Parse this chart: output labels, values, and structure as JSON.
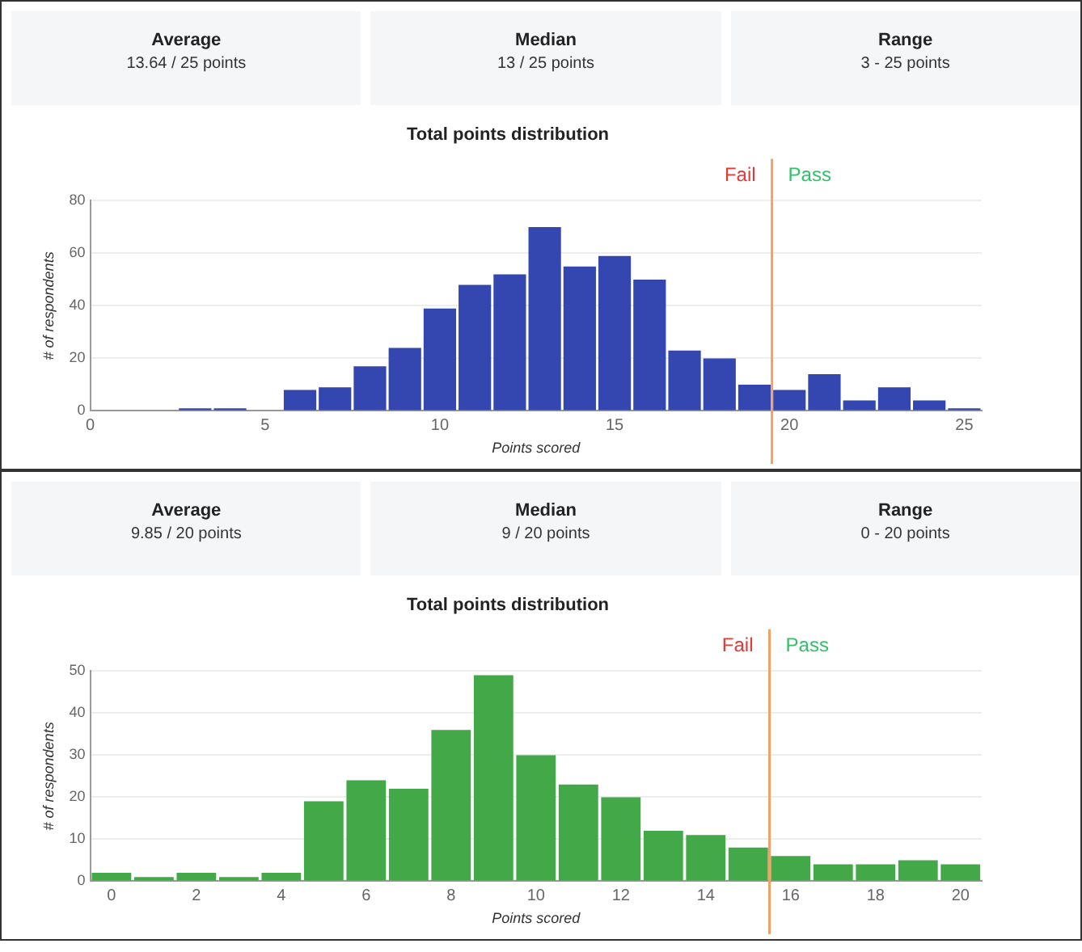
{
  "chart_data": [
    {
      "type": "other",
      "annotations": [
        "Average",
        "13.64 / 25 points",
        "Median",
        "13 / 25 points",
        "Range",
        "3 - 25 points"
      ]
    },
    {
      "type": "histogram",
      "title": "Total points distribution",
      "xlabel": "Points scored",
      "ylabel": "# of respondents",
      "color": "#3446b0",
      "bins": [
        0.5,
        1.5,
        2.5,
        3.5,
        4.5,
        5.5,
        6.5,
        7.5,
        8.5,
        9.5,
        10.5,
        11.5,
        12.5,
        13.5,
        14.5,
        15.5,
        16.5,
        17.5,
        18.5,
        19.5,
        20.5,
        21.5,
        22.5,
        23.5,
        24.5,
        25.5
      ],
      "values": [
        0,
        0,
        1,
        1,
        0,
        8,
        9,
        17,
        24,
        39,
        48,
        52,
        70,
        55,
        59,
        50,
        23,
        20,
        10,
        8,
        14,
        4,
        9,
        4,
        1
      ],
      "xlim": [
        0,
        25.5
      ],
      "xticks": [
        0,
        5,
        10,
        15,
        20,
        25
      ],
      "ylim": [
        0,
        80
      ],
      "yticks": [
        0,
        20,
        40,
        60,
        80
      ],
      "grid": "y",
      "legend": false,
      "ref_lines": [
        {
          "axis": "x",
          "value": 19.5,
          "color": "#f0a068"
        }
      ],
      "annotations": [
        "Fail",
        "Pass"
      ]
    },
    {
      "type": "other",
      "annotations": [
        "Average",
        "9.85 / 20 points",
        "Median",
        "9 / 20 points",
        "Range",
        "0 - 20 points"
      ]
    },
    {
      "type": "histogram",
      "title": "Total points distribution",
      "xlabel": "Points scored",
      "ylabel": "# of respondents",
      "color": "#43a847",
      "bins": [
        -0.5,
        0.5,
        1.5,
        2.5,
        3.5,
        4.5,
        5.5,
        6.5,
        7.5,
        8.5,
        9.5,
        10.5,
        11.5,
        12.5,
        13.5,
        14.5,
        15.5,
        16.5,
        17.5,
        18.5,
        19.5,
        20.5
      ],
      "values": [
        2,
        1,
        2,
        1,
        2,
        19,
        24,
        22,
        36,
        49,
        30,
        23,
        20,
        12,
        11,
        8,
        6,
        4,
        4,
        5,
        4
      ],
      "xlim": [
        -0.5,
        20.5
      ],
      "xticks": [
        0,
        2,
        4,
        6,
        8,
        10,
        12,
        14,
        16,
        18,
        20
      ],
      "ylim": [
        0,
        50
      ],
      "yticks": [
        0,
        10,
        20,
        30,
        40,
        50
      ],
      "grid": "y",
      "legend": false,
      "ref_lines": [
        {
          "axis": "x",
          "value": 15.5,
          "color": "#f0a068"
        }
      ],
      "annotations": [
        "Fail",
        "Pass"
      ]
    }
  ]
}
